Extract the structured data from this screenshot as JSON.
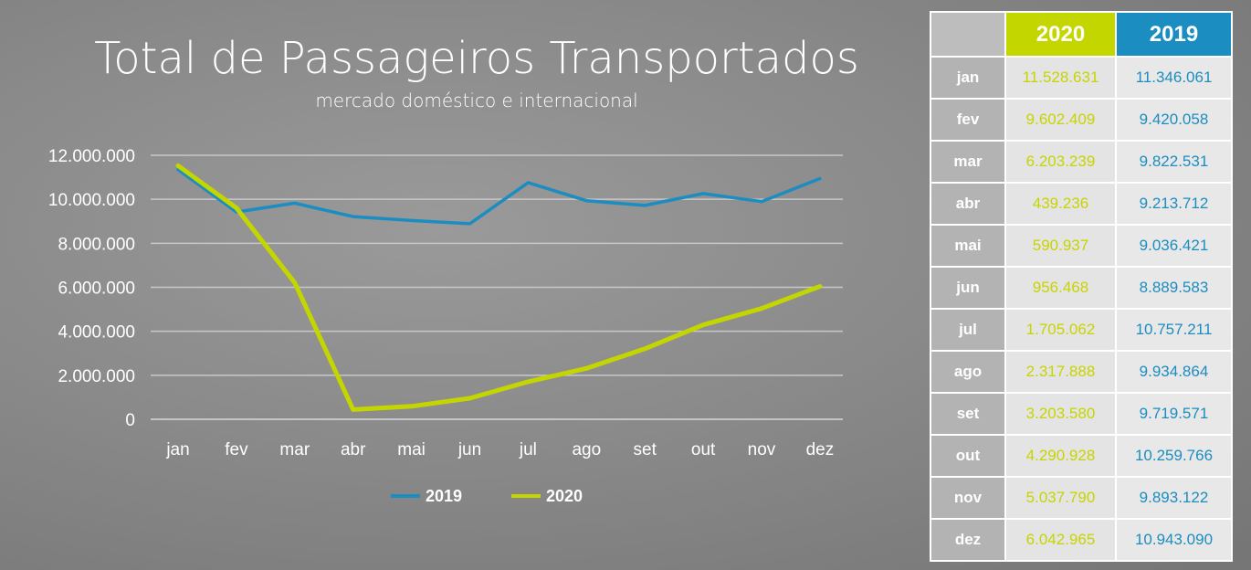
{
  "colors": {
    "series_2019": "#1c8dc0",
    "series_2020": "#c4d600"
  },
  "chart_data": {
    "type": "line",
    "title": "Total de Passageiros Transportados",
    "subtitle": "mercado doméstico e internacional",
    "xlabel": "",
    "ylabel": "",
    "categories": [
      "jan",
      "fev",
      "mar",
      "abr",
      "mai",
      "jun",
      "jul",
      "ago",
      "set",
      "out",
      "nov",
      "dez"
    ],
    "ylim": [
      0,
      12000000
    ],
    "yticks": [
      {
        "value": 0,
        "label": "0"
      },
      {
        "value": 2000000,
        "label": "2.000.000"
      },
      {
        "value": 4000000,
        "label": "4.000.000"
      },
      {
        "value": 6000000,
        "label": "6.000.000"
      },
      {
        "value": 8000000,
        "label": "8.000.000"
      },
      {
        "value": 10000000,
        "label": "10.000.000"
      },
      {
        "value": 12000000,
        "label": "12.000.000"
      }
    ],
    "grid": true,
    "legend": "bottom",
    "series": [
      {
        "name": "2019",
        "color": "#1c8dc0",
        "values": [
          11346061,
          9420058,
          9822531,
          9213712,
          9036421,
          8889583,
          10757211,
          9934864,
          9719571,
          10259766,
          9893122,
          10943090
        ]
      },
      {
        "name": "2020",
        "color": "#c4d600",
        "values": [
          11528631,
          9602409,
          6203239,
          439236,
          590937,
          956468,
          1705062,
          2317888,
          3203580,
          4290928,
          5037790,
          6042965
        ]
      }
    ]
  },
  "table": {
    "headers": [
      "",
      "2020",
      "2019"
    ],
    "rows": [
      {
        "month": "jan",
        "v2020": "11.528.631",
        "v2019": "11.346.061"
      },
      {
        "month": "fev",
        "v2020": "9.602.409",
        "v2019": "9.420.058"
      },
      {
        "month": "mar",
        "v2020": "6.203.239",
        "v2019": "9.822.531"
      },
      {
        "month": "abr",
        "v2020": "439.236",
        "v2019": "9.213.712"
      },
      {
        "month": "mai",
        "v2020": "590.937",
        "v2019": "9.036.421"
      },
      {
        "month": "jun",
        "v2020": "956.468",
        "v2019": "8.889.583"
      },
      {
        "month": "jul",
        "v2020": "1.705.062",
        "v2019": "10.757.211"
      },
      {
        "month": "ago",
        "v2020": "2.317.888",
        "v2019": "9.934.864"
      },
      {
        "month": "set",
        "v2020": "3.203.580",
        "v2019": "9.719.571"
      },
      {
        "month": "out",
        "v2020": "4.290.928",
        "v2019": "10.259.766"
      },
      {
        "month": "nov",
        "v2020": "5.037.790",
        "v2019": "9.893.122"
      },
      {
        "month": "dez",
        "v2020": "6.042.965",
        "v2019": "10.943.090"
      }
    ]
  }
}
